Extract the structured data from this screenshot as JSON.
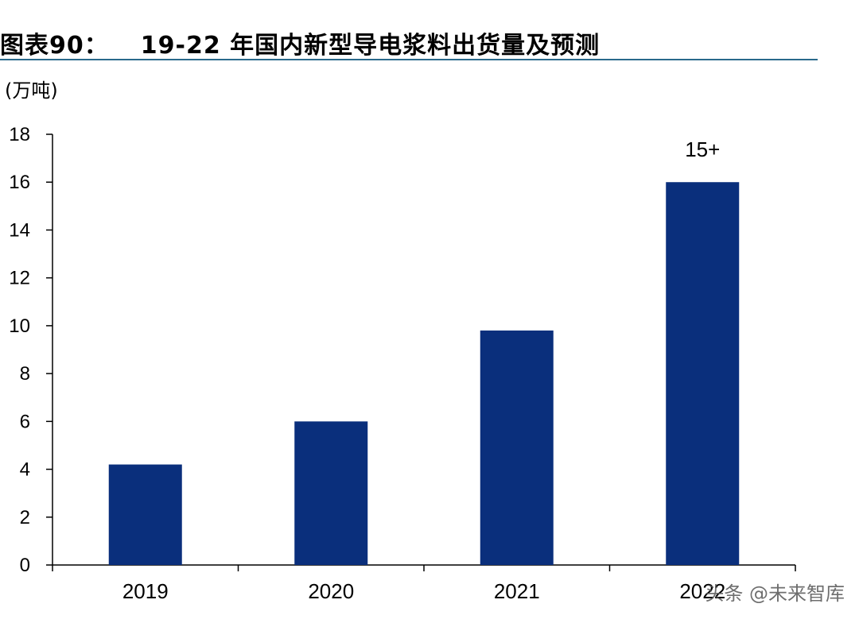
{
  "header": {
    "figure_label": "图表90：",
    "title": "19-22 年国内新型导电浆料出货量及预测"
  },
  "unit_label": "(万吨)",
  "watermark": "头条 @未来智库",
  "colors": {
    "bar": "#0a2f7c",
    "rule": "#2a6a8c",
    "axis": "#000000"
  },
  "chart_data": {
    "type": "bar",
    "title": "19-22 年国内新型导电浆料出货量及预测",
    "xlabel": "",
    "ylabel": "(万吨)",
    "categories": [
      "2019",
      "2020",
      "2021",
      "2022"
    ],
    "values": [
      4.2,
      6.0,
      9.8,
      16.0
    ],
    "data_labels": [
      "",
      "",
      "",
      "15+"
    ],
    "ylim": [
      0,
      18
    ],
    "yticks": [
      0,
      2,
      4,
      6,
      8,
      10,
      12,
      14,
      16,
      18
    ],
    "grid": false,
    "legend": "none"
  }
}
